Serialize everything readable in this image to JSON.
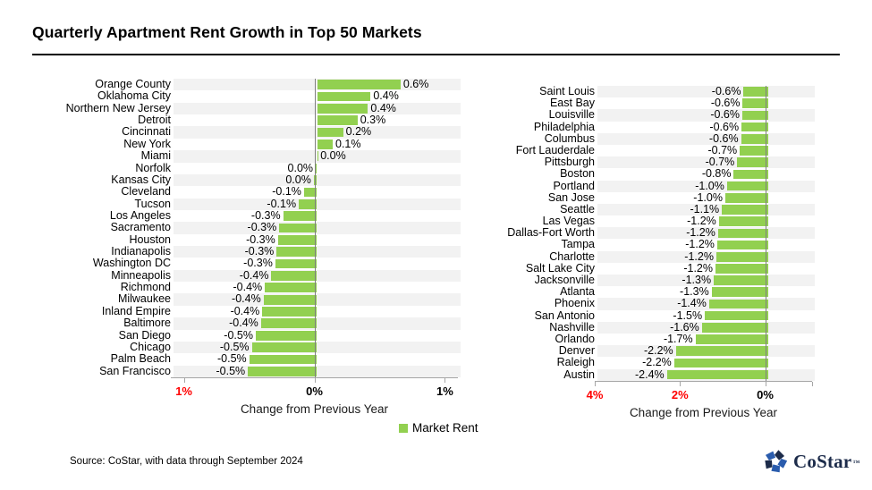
{
  "title": "Quarterly Apartment Rent Growth in Top 50 Markets",
  "source_note": "Source: CoStar, with data through September 2024",
  "legend": {
    "label": "Market Rent",
    "color": "#92d050"
  },
  "logo": {
    "text": "CoStar",
    "tm": "™"
  },
  "colors": {
    "bar_green": "#92d050",
    "stripe_gray": "#f2f2f2",
    "axis_red": "#ff0000",
    "zero_line": "#808080",
    "axis_line": "#a6a6a6",
    "logo_navy": "#1c2b4a",
    "logo_blue": "#2a5cad"
  },
  "chart_data": [
    {
      "type": "bar",
      "orientation": "horizontal",
      "series_name": "Market Rent",
      "xlabel": "Change from Previous Year",
      "xlim": [
        -1.1,
        1.1
      ],
      "grid": false,
      "ticks": [
        {
          "value": -1,
          "label": "1%",
          "color": "#ff0000"
        },
        {
          "value": 0,
          "label": "0%",
          "color": "#000000"
        },
        {
          "value": 1,
          "label": "1%",
          "color": "#000000"
        }
      ],
      "categories": [
        "Orange County",
        "Oklahoma City",
        "Northern New Jersey",
        "Detroit",
        "Cincinnati",
        "New York",
        "Miami",
        "Norfolk",
        "Kansas City",
        "Cleveland",
        "Tucson",
        "Los Angeles",
        "Sacramento",
        "Houston",
        "Indianapolis",
        "Washington DC",
        "Minneapolis",
        "Richmond",
        "Milwaukee",
        "Inland Empire",
        "Baltimore",
        "San Diego",
        "Chicago",
        "Palm Beach",
        "San Francisco"
      ],
      "values": [
        0.64,
        0.41,
        0.39,
        0.31,
        0.2,
        0.12,
        0.005,
        -0.01,
        -0.025,
        -0.1,
        -0.14,
        -0.26,
        -0.29,
        -0.3,
        -0.31,
        -0.32,
        -0.35,
        -0.4,
        -0.41,
        -0.42,
        -0.43,
        -0.47,
        -0.5,
        -0.52,
        -0.53
      ],
      "value_labels": [
        "0.6%",
        "0.4%",
        "0.4%",
        "0.3%",
        "0.2%",
        "0.1%",
        "0.0%",
        "0.0%",
        "0.0%",
        "-0.1%",
        "-0.1%",
        "-0.3%",
        "-0.3%",
        "-0.3%",
        "-0.3%",
        "-0.3%",
        "-0.4%",
        "-0.4%",
        "-0.4%",
        "-0.4%",
        "-0.4%",
        "-0.5%",
        "-0.5%",
        "-0.5%",
        "-0.5%"
      ]
    },
    {
      "type": "bar",
      "orientation": "horizontal",
      "series_name": "Market Rent",
      "xlabel": "Change from Previous Year",
      "xlim": [
        -4.0,
        1.1
      ],
      "grid": false,
      "ticks": [
        {
          "value": -4,
          "label": "4%",
          "color": "#ff0000"
        },
        {
          "value": -2,
          "label": "2%",
          "color": "#ff0000"
        },
        {
          "value": 0,
          "label": "0%",
          "color": "#000000"
        },
        {
          "value": 1.1,
          "label": "",
          "color": "#000000"
        }
      ],
      "categories": [
        "Saint Louis",
        "East Bay",
        "Louisville",
        "Philadelphia",
        "Columbus",
        "Fort Lauderdale",
        "Pittsburgh",
        "Boston",
        "Portland",
        "San Jose",
        "Seattle",
        "Las Vegas",
        "Dallas-Fort Worth",
        "Tampa",
        "Charlotte",
        "Salt Lake City",
        "Jacksonville",
        "Atlanta",
        "Phoenix",
        "San Antonio",
        "Nashville",
        "Orlando",
        "Denver",
        "Raleigh",
        "Austin"
      ],
      "values": [
        -0.57,
        -0.59,
        -0.6,
        -0.62,
        -0.63,
        -0.66,
        -0.72,
        -0.8,
        -0.96,
        -1.0,
        -1.08,
        -1.15,
        -1.17,
        -1.19,
        -1.21,
        -1.23,
        -1.27,
        -1.32,
        -1.38,
        -1.48,
        -1.55,
        -1.7,
        -2.16,
        -2.2,
        -2.37
      ],
      "value_labels": [
        "-0.6%",
        "-0.6%",
        "-0.6%",
        "-0.6%",
        "-0.6%",
        "-0.7%",
        "-0.7%",
        "-0.8%",
        "-1.0%",
        "-1.0%",
        "-1.1%",
        "-1.2%",
        "-1.2%",
        "-1.2%",
        "-1.2%",
        "-1.2%",
        "-1.3%",
        "-1.3%",
        "-1.4%",
        "-1.5%",
        "-1.6%",
        "-1.7%",
        "-2.2%",
        "-2.2%",
        "-2.4%"
      ]
    }
  ]
}
